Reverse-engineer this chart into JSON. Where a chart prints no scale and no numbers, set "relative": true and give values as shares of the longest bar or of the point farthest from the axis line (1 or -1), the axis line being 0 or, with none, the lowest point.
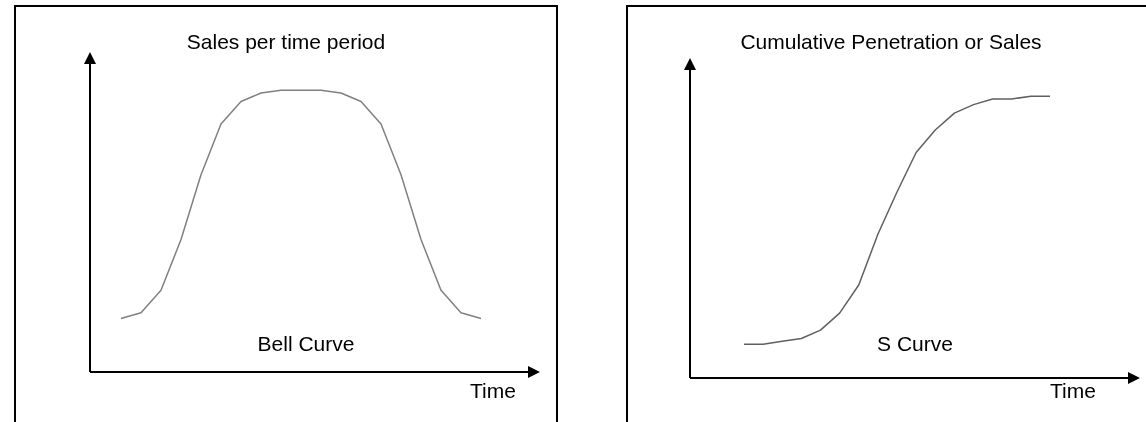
{
  "chart_data": [
    {
      "type": "line",
      "title": "Sales per time period",
      "xlabel": "Time",
      "annotations": [
        "Bell Curve"
      ],
      "relative": true,
      "grid": false,
      "marker": "none",
      "line_style": "solid",
      "categories": [
        null,
        null,
        null,
        null,
        null,
        null,
        null,
        null,
        null,
        null,
        null,
        null,
        null,
        null,
        null,
        null,
        null,
        null,
        null
      ],
      "series": [
        {
          "color": "#808080",
          "values": [
            0.19,
            0.21,
            0.29,
            0.47,
            0.7,
            0.88,
            0.96,
            0.99,
            1,
            1,
            1,
            0.99,
            0.96,
            0.88,
            0.7,
            0.47,
            0.29,
            0.21,
            0.19
          ]
        }
      ]
    },
    {
      "type": "line",
      "title": "Cumulative Penetration or Sales",
      "xlabel": "Time",
      "annotations": [
        "S Curve"
      ],
      "relative": true,
      "grid": false,
      "marker": "none",
      "line_style": "solid",
      "categories": [
        null,
        null,
        null,
        null,
        null,
        null,
        null,
        null,
        null,
        null,
        null,
        null,
        null,
        null,
        null,
        null,
        null
      ],
      "series": [
        {
          "color": "#606060",
          "values": [
            0.12,
            0.12,
            0.13,
            0.14,
            0.17,
            0.23,
            0.33,
            0.51,
            0.66,
            0.8,
            0.88,
            0.94,
            0.97,
            0.99,
            0.99,
            1,
            1
          ]
        }
      ]
    }
  ]
}
